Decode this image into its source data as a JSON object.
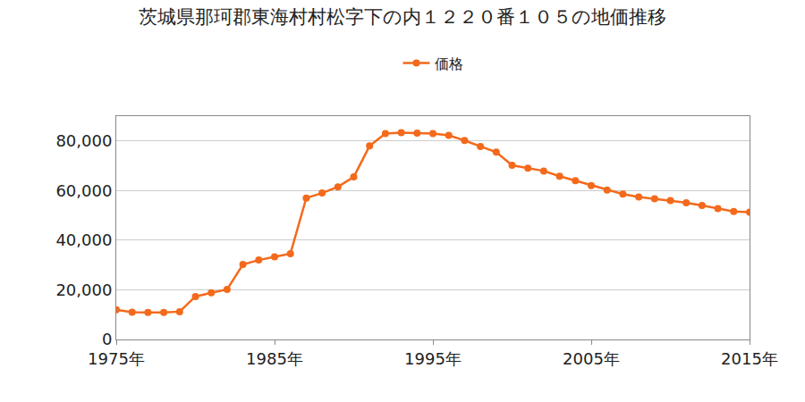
{
  "chart_data": {
    "type": "line",
    "title": "茨城県那珂郡東海村村松字下の内１２２０番１０５の地価推移",
    "x": [
      1975,
      1976,
      1977,
      1978,
      1979,
      1980,
      1981,
      1982,
      1983,
      1984,
      1985,
      1986,
      1987,
      1988,
      1989,
      1990,
      1991,
      1992,
      1993,
      1994,
      1995,
      1996,
      1997,
      1998,
      1999,
      2000,
      2001,
      2002,
      2003,
      2004,
      2005,
      2006,
      2007,
      2008,
      2009,
      2010,
      2011,
      2012,
      2013,
      2014,
      2015
    ],
    "series": [
      {
        "name": "価格",
        "color": "#f36a1c",
        "marker": "circle",
        "values": [
          12000,
          11000,
          10900,
          10900,
          11200,
          17300,
          18800,
          20200,
          30200,
          32000,
          33300,
          34600,
          57000,
          59000,
          61500,
          65500,
          78000,
          83000,
          83300,
          83200,
          83000,
          82300,
          80200,
          77800,
          75500,
          70200,
          69000,
          67900,
          65800,
          64000,
          62000,
          60200,
          58600,
          57400,
          56700,
          56000,
          55100,
          54000,
          52700,
          51600,
          51300
        ]
      }
    ],
    "xlim": [
      1975,
      2015
    ],
    "xticks": [
      {
        "value": 1975,
        "label": "1975年"
      },
      {
        "value": 1985,
        "label": "1985年"
      },
      {
        "value": 1995,
        "label": "1995年"
      },
      {
        "value": 2005,
        "label": "2005年"
      },
      {
        "value": 2015,
        "label": "2015年"
      }
    ],
    "ylim": [
      0,
      90000
    ],
    "yticks": [
      0,
      {
        "value": 20000,
        "label": "20,000"
      },
      {
        "value": 40000,
        "label": "40,000"
      },
      {
        "value": 60000,
        "label": "60,000"
      },
      {
        "value": 80000,
        "label": "80,000"
      }
    ],
    "grid": true,
    "legend": "top"
  }
}
